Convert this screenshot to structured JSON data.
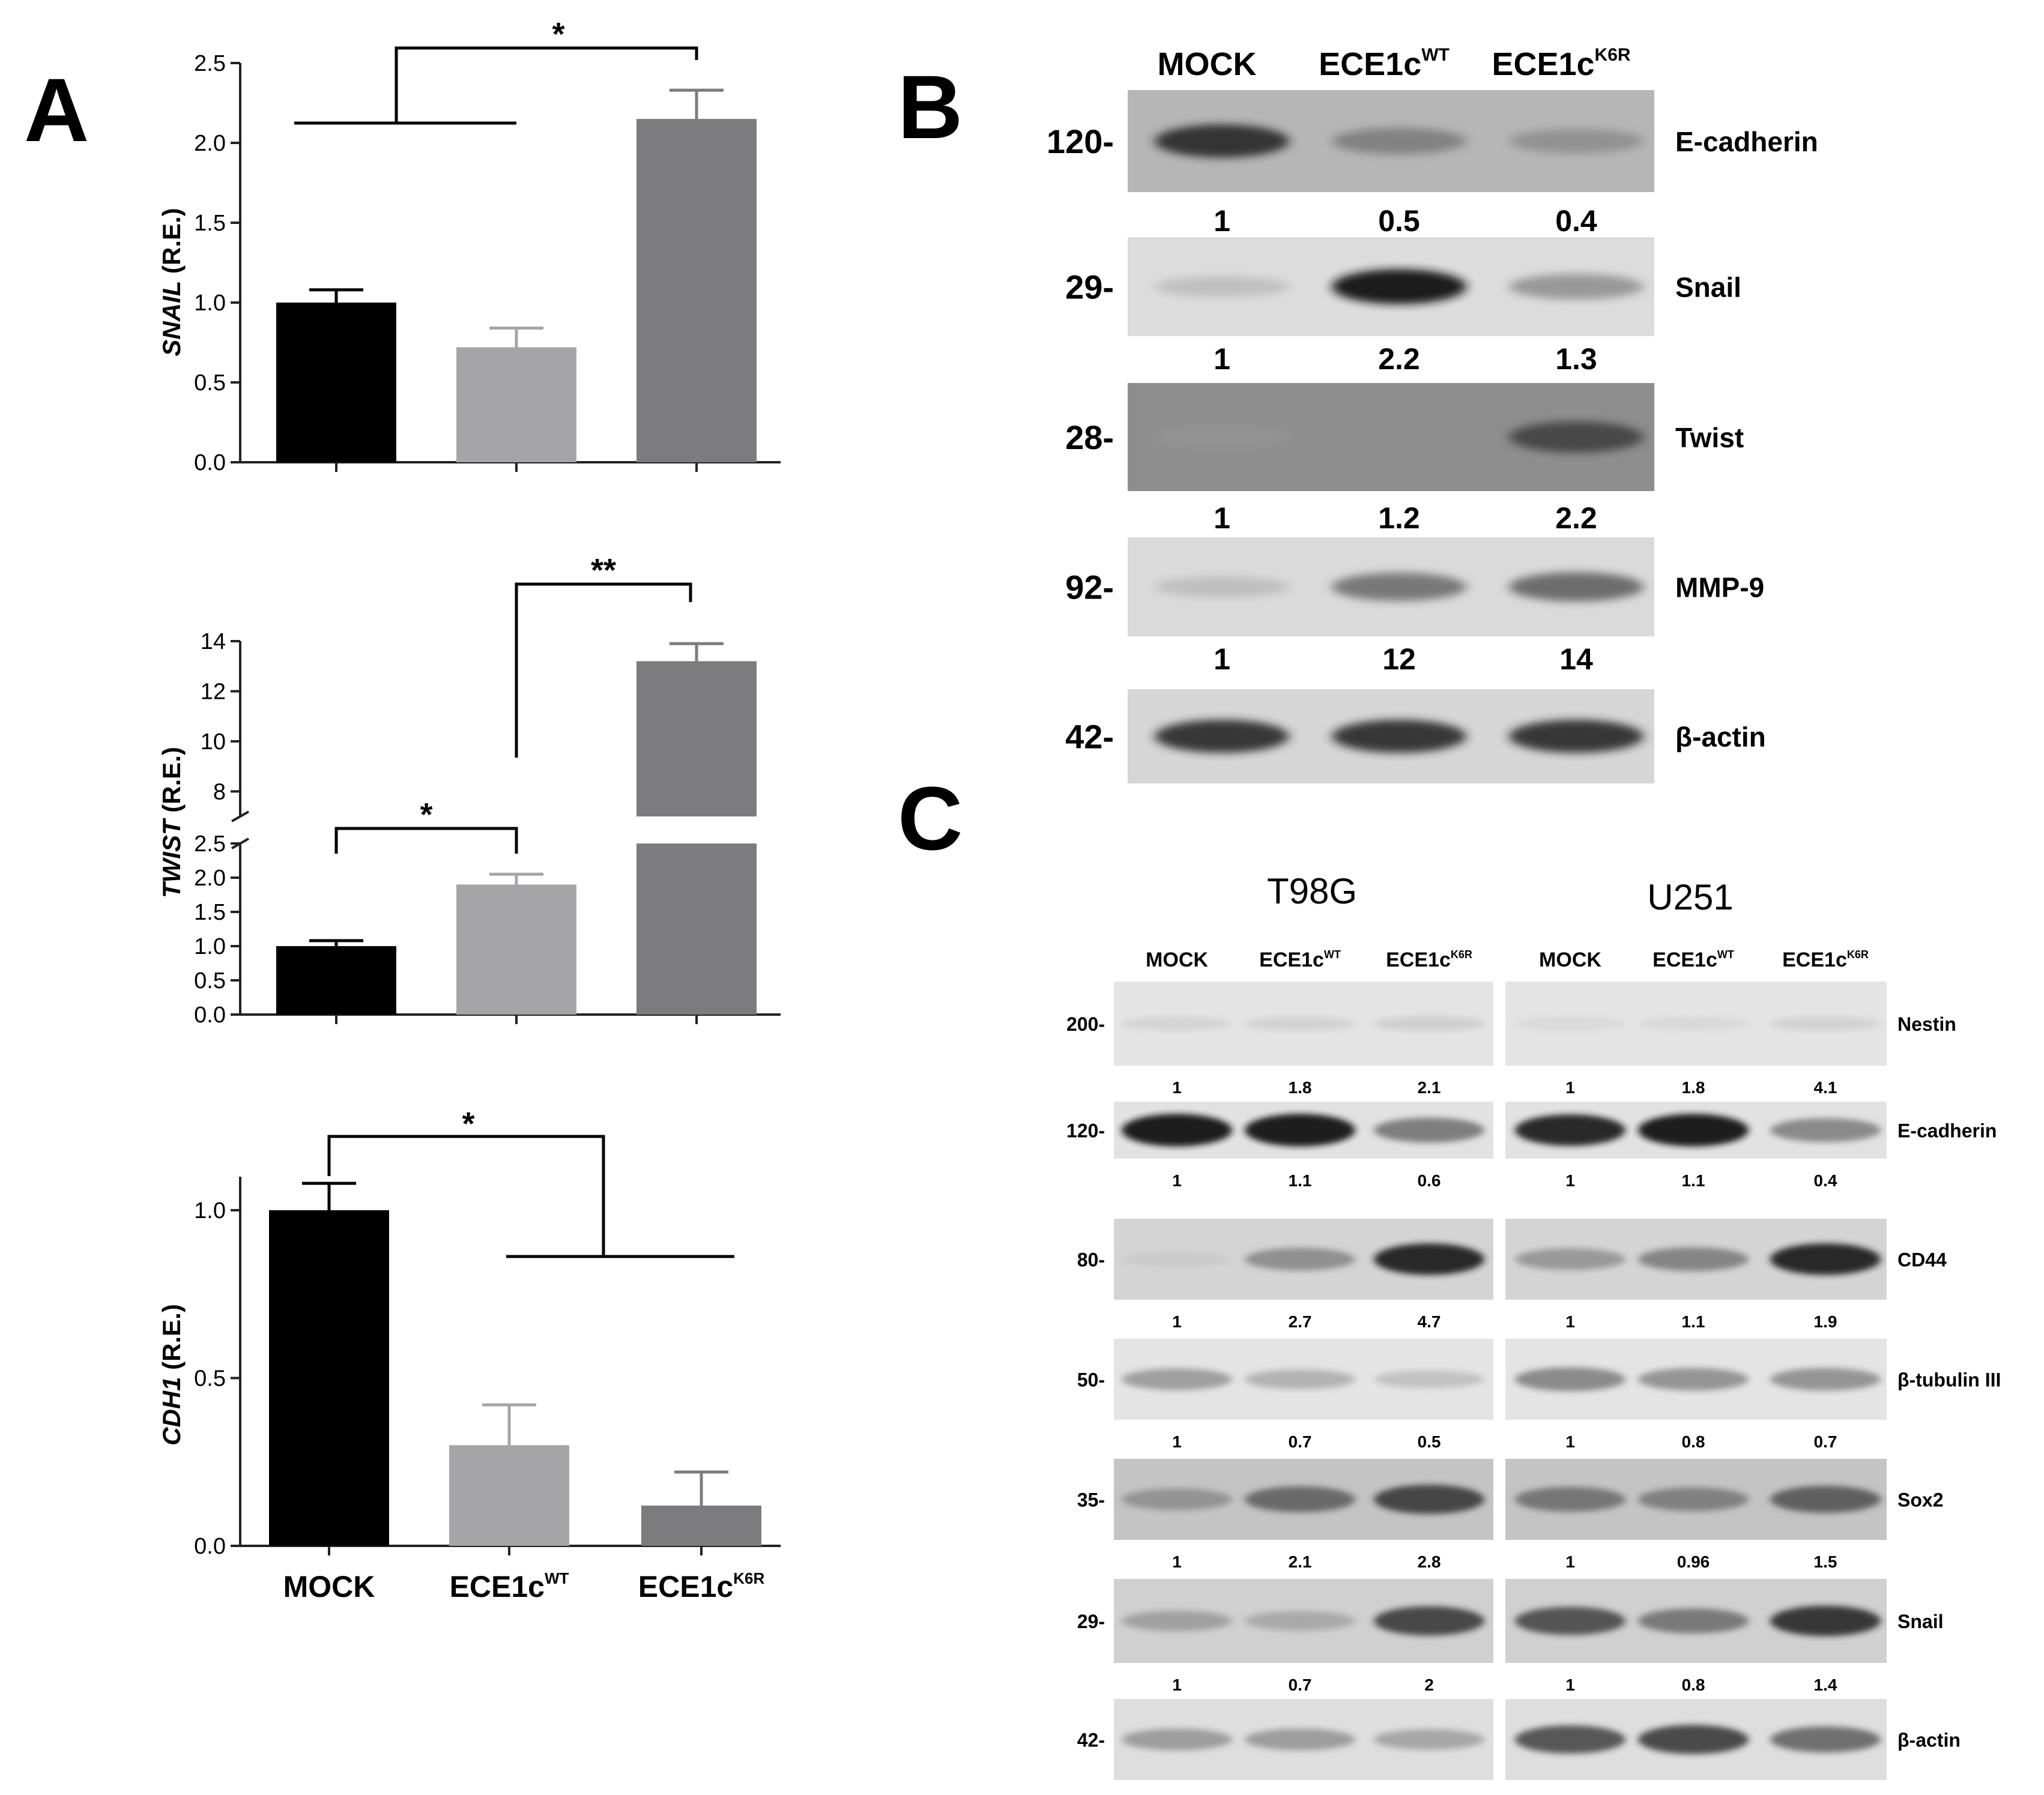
{
  "panels": {
    "a_letter": "A",
    "b_letter": "B",
    "c_letter": "C"
  },
  "colors": {
    "mock": "#000000",
    "wt": "#a5a5a9",
    "k6r": "#7c7c7e"
  },
  "chart_data": [
    {
      "type": "bar",
      "panel": "A",
      "ylabel_italic": "SNAIL",
      "ylabel_rest": " (R.E.)",
      "categories": [
        "MOCK",
        "ECE1cWT",
        "ECE1cK6R"
      ],
      "values": [
        1.0,
        0.72,
        2.15
      ],
      "errors": [
        0.08,
        0.12,
        0.18
      ],
      "ylim": [
        0,
        2.5
      ],
      "yticks": [
        "0.0",
        "0.5",
        "1.0",
        "1.5",
        "2.0",
        "2.5"
      ],
      "significance": [
        {
          "label": "*",
          "from": "MOCK+ECE1cWT",
          "to": "ECE1cK6R"
        }
      ]
    },
    {
      "type": "bar",
      "panel": "A",
      "ylabel_italic": "TWIST",
      "ylabel_rest": " (R.E.)",
      "categories": [
        "MOCK",
        "ECE1cWT",
        "ECE1cK6R"
      ],
      "values": [
        1.0,
        1.9,
        13.2
      ],
      "errors": [
        0.08,
        0.15,
        0.7
      ],
      "axis_break": {
        "lower_ylim": [
          0,
          2.5
        ],
        "upper_ylim": [
          7,
          14
        ]
      },
      "yticks_lower": [
        "0.0",
        "0.5",
        "1.0",
        "1.5",
        "2.0",
        "2.5"
      ],
      "yticks_upper": [
        "8",
        "10",
        "12",
        "14"
      ],
      "significance": [
        {
          "label": "*",
          "from": "MOCK",
          "to": "ECE1cWT"
        },
        {
          "label": "**",
          "from": "ECE1cWT",
          "to": "ECE1cK6R"
        }
      ]
    },
    {
      "type": "bar",
      "panel": "A",
      "ylabel_italic": "CDH1",
      "ylabel_rest": " (R.E.)",
      "categories": [
        "MOCK",
        "ECE1cWT",
        "ECE1cK6R"
      ],
      "values": [
        1.0,
        0.3,
        0.12
      ],
      "errors": [
        0.08,
        0.12,
        0.1
      ],
      "ylim": [
        0,
        1.1
      ],
      "yticks": [
        "0.0",
        "0.5",
        "1.0"
      ],
      "significance": [
        {
          "label": "*",
          "from": "MOCK",
          "to": "ECE1cWT+ECE1cK6R"
        }
      ]
    }
  ],
  "xaxis_labels": [
    {
      "base": "MOCK",
      "sup": ""
    },
    {
      "base": "ECE1c",
      "sup": "WT"
    },
    {
      "base": "ECE1c",
      "sup": "K6R"
    }
  ],
  "blot_b": {
    "lanes": [
      {
        "base": "MOCK",
        "sup": ""
      },
      {
        "base": "ECE1c",
        "sup": "WT"
      },
      {
        "base": "ECE1c",
        "sup": "K6R"
      }
    ],
    "rows": [
      {
        "mw": "120-",
        "protein": "E-cadherin",
        "quant": [
          "1",
          "0.5",
          "0.4"
        ],
        "band": [
          0.85,
          0.5,
          0.4
        ],
        "bg": "#b6b6b6"
      },
      {
        "mw": "29-",
        "protein": "Snail",
        "quant": [
          "1",
          "2.2",
          "1.3"
        ],
        "band": [
          0.2,
          0.95,
          0.45
        ],
        "bg": "#dcdcdc"
      },
      {
        "mw": "28-",
        "protein": "Twist",
        "quant": [
          "1",
          "1.2",
          "2.2"
        ],
        "band": [
          0.25,
          0.3,
          0.75
        ],
        "bg": "#8e8e8e"
      },
      {
        "mw": "92-",
        "protein": "MMP-9",
        "quant": [
          "1",
          "12",
          "14"
        ],
        "band": [
          0.2,
          0.6,
          0.65
        ],
        "bg": "#dadada"
      },
      {
        "mw": "42-",
        "protein": "β-actin",
        "quant": [],
        "band": [
          0.85,
          0.85,
          0.85
        ],
        "bg": "#d6d6d6"
      }
    ]
  },
  "blot_c": {
    "cell_lines": [
      "T98G",
      "U251"
    ],
    "lanes": [
      {
        "base": "MOCK",
        "sup": ""
      },
      {
        "base": "ECE1c",
        "sup": "WT"
      },
      {
        "base": "ECE1c",
        "sup": "K6R"
      }
    ],
    "rows": [
      {
        "mw": "200-",
        "protein": "Nestin",
        "quant_t98g": [
          "1",
          "1.8",
          "2.1"
        ],
        "quant_u251": [
          "1",
          "1.8",
          "4.1"
        ],
        "band_t98g": [
          0.1,
          0.12,
          0.15
        ],
        "band_u251": [
          0.05,
          0.06,
          0.12
        ],
        "bg": "#e4e4e4"
      },
      {
        "mw": "120-",
        "protein": "E-cadherin",
        "quant_t98g": [
          "1",
          "1.1",
          "0.6"
        ],
        "quant_u251": [
          "1",
          "1.1",
          "0.4"
        ],
        "band_t98g": [
          0.95,
          0.95,
          0.6
        ],
        "band_u251": [
          0.9,
          0.95,
          0.55
        ],
        "bg": "#e2e2e2"
      },
      {
        "mw": "80-",
        "protein": "CD44",
        "quant_t98g": [
          "1",
          "2.7",
          "4.7"
        ],
        "quant_u251": [
          "1",
          "1.1",
          "1.9"
        ],
        "band_t98g": [
          0.1,
          0.5,
          0.9
        ],
        "band_u251": [
          0.45,
          0.55,
          0.9
        ],
        "bg": "#d4d4d4"
      },
      {
        "mw": "50-",
        "protein": "β-tubulin III",
        "quant_t98g": [
          "1",
          "0.7",
          "0.5"
        ],
        "quant_u251": [
          "1",
          "0.8",
          "0.7"
        ],
        "band_t98g": [
          0.45,
          0.35,
          0.25
        ],
        "band_u251": [
          0.55,
          0.5,
          0.5
        ],
        "bg": "#e4e4e4"
      },
      {
        "mw": "35-",
        "protein": "Sox2",
        "quant_t98g": [
          "1",
          "2.1",
          "2.8"
        ],
        "quant_u251": [
          "1",
          "0.96",
          "1.5"
        ],
        "band_t98g": [
          0.45,
          0.65,
          0.8
        ],
        "band_u251": [
          0.6,
          0.55,
          0.7
        ],
        "bg": "#c4c4c4"
      },
      {
        "mw": "29-",
        "protein": "Snail",
        "quant_t98g": [
          "1",
          "0.7",
          "2"
        ],
        "quant_u251": [
          "1",
          "0.8",
          "1.4"
        ],
        "band_t98g": [
          0.4,
          0.35,
          0.8
        ],
        "band_u251": [
          0.75,
          0.6,
          0.85
        ],
        "bg": "#d0d0d0"
      },
      {
        "mw": "42-",
        "protein": "β-actin",
        "quant_t98g": [],
        "quant_u251": [],
        "band_t98g": [
          0.45,
          0.45,
          0.4
        ],
        "band_u251": [
          0.75,
          0.8,
          0.65
        ],
        "bg": "#dedede"
      }
    ]
  }
}
